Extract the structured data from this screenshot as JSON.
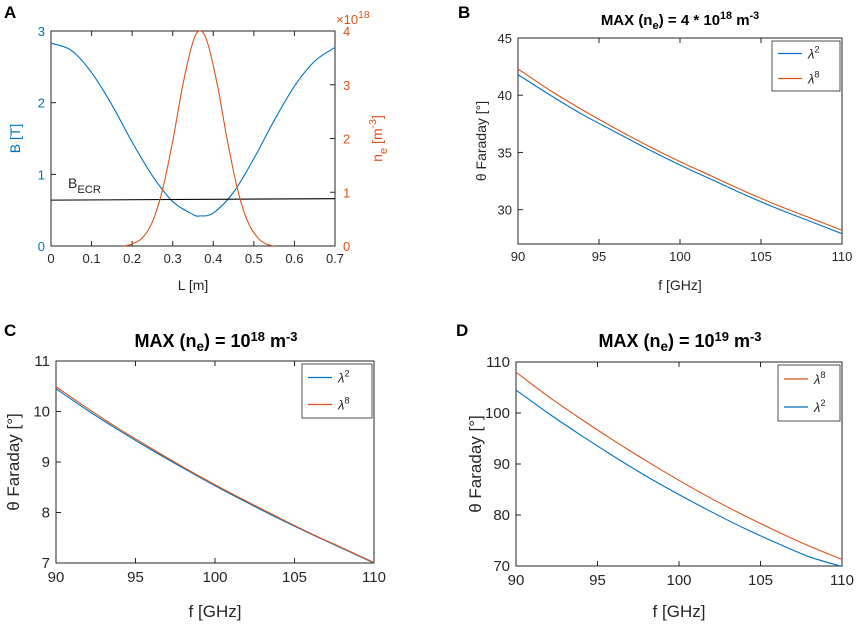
{
  "chart_data": [
    {
      "panel": "A",
      "type": "line",
      "xlabel": "L [m]",
      "ylabel_left": "B [T]",
      "ylabel_right": "n_e [m^-3]",
      "ylabel_right_parts": {
        "base": "n",
        "sub": "e",
        "unit_open": " [m",
        "sup": "-3",
        "unit_close": "]"
      },
      "xlim": [
        0,
        0.7
      ],
      "ylim_left": [
        0,
        3
      ],
      "ylim_right": [
        0,
        4
      ],
      "right_exponent": "×10",
      "right_exponent_sup": "18",
      "xticks": [
        "0",
        "0.1",
        "0.2",
        "0.3",
        "0.4",
        "0.5",
        "0.6",
        "0.7"
      ],
      "yticks_left": [
        "0",
        "1",
        "2",
        "3"
      ],
      "yticks_right": [
        "0",
        "1",
        "2",
        "3",
        "4"
      ],
      "annotation": {
        "base": "B",
        "sub": "ECR"
      },
      "series": [
        {
          "name": "B",
          "axis": "left",
          "color": "#0072BD",
          "x": [
            0,
            0.05,
            0.1,
            0.15,
            0.2,
            0.25,
            0.3,
            0.35,
            0.367,
            0.4,
            0.45,
            0.5,
            0.55,
            0.6,
            0.65,
            0.7
          ],
          "y": [
            2.83,
            2.73,
            2.42,
            1.97,
            1.45,
            0.98,
            0.62,
            0.44,
            0.42,
            0.46,
            0.75,
            1.22,
            1.75,
            2.23,
            2.58,
            2.77
          ]
        },
        {
          "name": "B_ECR",
          "axis": "left",
          "color": "#000000",
          "x": [
            0,
            0.7
          ],
          "y": [
            0.64,
            0.66
          ]
        },
        {
          "name": "n_e",
          "axis": "right",
          "color": "#D95319",
          "x": [
            0.18,
            0.2,
            0.225,
            0.25,
            0.275,
            0.3,
            0.325,
            0.35,
            0.367,
            0.385,
            0.41,
            0.435,
            0.46,
            0.485,
            0.51,
            0.53,
            0.55
          ],
          "y": [
            0.0,
            0.04,
            0.15,
            0.45,
            1.05,
            1.95,
            3.0,
            3.8,
            4.0,
            3.8,
            3.0,
            1.95,
            1.05,
            0.45,
            0.15,
            0.04,
            0.0
          ]
        }
      ]
    },
    {
      "panel": "B",
      "type": "line",
      "title": "MAX (n",
      "title_sub": "e",
      "title_mid": ") = 4 * 10",
      "title_sup": "18",
      "title_unit": " m",
      "title_unit_sup": "-3",
      "xlabel": "f [GHz]",
      "ylabel": "θ Faraday [°]",
      "xlim": [
        90,
        110
      ],
      "ylim": [
        27,
        45
      ],
      "xticks": [
        "90",
        "95",
        "100",
        "105",
        "110"
      ],
      "yticks": [
        "30",
        "35",
        "40",
        "45"
      ],
      "legend_position": "top-right",
      "series": [
        {
          "name": "λ",
          "sup": "2",
          "color": "#0072BD",
          "x": [
            90,
            92,
            94,
            96,
            98,
            100,
            102,
            104,
            106,
            108,
            110
          ],
          "y": [
            41.8,
            40.0,
            38.3,
            36.8,
            35.3,
            33.9,
            32.6,
            31.3,
            30.1,
            29.0,
            27.9
          ]
        },
        {
          "name": "λ",
          "sup": "8",
          "color": "#D95319",
          "x": [
            90,
            92,
            94,
            96,
            98,
            100,
            102,
            104,
            106,
            108,
            110
          ],
          "y": [
            42.3,
            40.4,
            38.7,
            37.1,
            35.6,
            34.2,
            32.9,
            31.6,
            30.4,
            29.3,
            28.2
          ]
        }
      ]
    },
    {
      "panel": "C",
      "type": "line",
      "title": "MAX (n",
      "title_sub": "e",
      "title_mid": ") = 10",
      "title_sup": "18",
      "title_unit": " m",
      "title_unit_sup": "-3",
      "xlabel": "f [GHz]",
      "ylabel": "θ Faraday [°]",
      "xlim": [
        90,
        110
      ],
      "ylim": [
        7,
        11
      ],
      "xticks": [
        "90",
        "95",
        "100",
        "105",
        "110"
      ],
      "yticks": [
        "7",
        "8",
        "9",
        "10",
        "11"
      ],
      "legend_position": "top-right",
      "series": [
        {
          "name": "λ",
          "sup": "2",
          "color": "#0072BD",
          "x": [
            90,
            92,
            94,
            96,
            98,
            100,
            102,
            104,
            106,
            108,
            110
          ],
          "y": [
            10.45,
            10.02,
            9.62,
            9.24,
            8.88,
            8.53,
            8.2,
            7.88,
            7.58,
            7.29,
            7.0
          ]
        },
        {
          "name": "λ",
          "sup": "8",
          "color": "#D95319",
          "x": [
            90,
            92,
            94,
            96,
            98,
            100,
            102,
            104,
            106,
            108,
            110
          ],
          "y": [
            10.49,
            10.06,
            9.65,
            9.27,
            8.9,
            8.55,
            8.22,
            7.9,
            7.59,
            7.3,
            7.01
          ]
        }
      ]
    },
    {
      "panel": "D",
      "type": "line",
      "title": "MAX (n",
      "title_sub": "e",
      "title_mid": ") = 10",
      "title_sup": "19",
      "title_unit": " m",
      "title_unit_sup": "-3",
      "xlabel": "f [GHz]",
      "ylabel": "θ Faraday [°]",
      "xlim": [
        90,
        110
      ],
      "ylim": [
        70,
        110
      ],
      "xticks": [
        "90",
        "95",
        "100",
        "105",
        "110"
      ],
      "yticks": [
        "70",
        "80",
        "90",
        "100",
        "110"
      ],
      "legend_position": "top-right",
      "series": [
        {
          "name": "λ",
          "sup": "8",
          "color": "#D95319",
          "x": [
            90,
            92,
            94,
            96,
            98,
            100,
            102,
            104,
            106,
            108,
            110
          ],
          "y": [
            108.0,
            103.2,
            98.8,
            94.6,
            90.6,
            86.8,
            83.2,
            79.9,
            76.8,
            73.9,
            71.3
          ]
        },
        {
          "name": "λ",
          "sup": "2",
          "color": "#0072BD",
          "x": [
            90,
            92,
            94,
            96,
            98,
            100,
            102,
            104,
            106,
            108,
            110
          ],
          "y": [
            104.5,
            99.9,
            95.6,
            91.5,
            87.6,
            84.0,
            80.6,
            77.4,
            74.5,
            71.8,
            69.9
          ]
        }
      ]
    }
  ]
}
